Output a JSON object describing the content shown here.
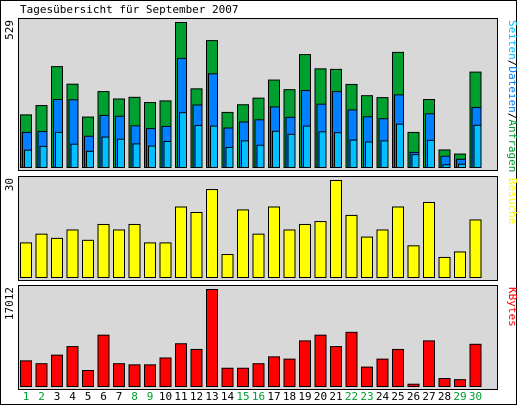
{
  "chart_data": {
    "type": "bar",
    "title": "Tagesübersicht für September 2007",
    "categories": [
      "1",
      "2",
      "3",
      "4",
      "5",
      "6",
      "7",
      "8",
      "9",
      "10",
      "11",
      "12",
      "13",
      "14",
      "15",
      "16",
      "17",
      "18",
      "19",
      "20",
      "21",
      "22",
      "23",
      "24",
      "25",
      "26",
      "27",
      "28",
      "29",
      "30"
    ],
    "weekend_days": [
      "1",
      "2",
      "8",
      "9",
      "15",
      "16",
      "22",
      "23",
      "29",
      "30"
    ],
    "colors": {
      "anfragen": "#00a030",
      "dateien": "#0080ff",
      "seiten": "#00c0ff",
      "besuche": "#ffff00",
      "kbytes": "#ff0000",
      "weekday_label": "#000000",
      "weekend_label": "#00a030",
      "panel_bg": "#d8d8d8"
    },
    "panels": [
      {
        "id": "hits",
        "max_label": "529",
        "ylim": [
          0,
          529
        ],
        "legend": [
          {
            "text": "Seiten",
            "color": "#00c0ff"
          },
          {
            "text": "/",
            "color": "#000000"
          },
          {
            "text": "Dateien",
            "color": "#0080ff"
          },
          {
            "text": "/",
            "color": "#000000"
          },
          {
            "text": "Anfragen",
            "color": "#00a030"
          }
        ],
        "series": [
          {
            "name": "Anfragen",
            "color": "#00a030",
            "values": [
              192,
              226,
              368,
              304,
              184,
              277,
              250,
              256,
              237,
              243,
              529,
              287,
              463,
              201,
              229,
              253,
              319,
              284,
              412,
              360,
              358,
              303,
              262,
              255,
              420,
              128,
              248,
              64,
              49,
              348
            ]
          },
          {
            "name": "Dateien",
            "color": "#0080ff",
            "values": [
              128,
              131,
              248,
              247,
              114,
              190,
              187,
              152,
              142,
              150,
              398,
              228,
              342,
              144,
              166,
              174,
              221,
              183,
              281,
              231,
              277,
              210,
              185,
              178,
              265,
              55,
              196,
              41,
              30,
              219
            ]
          },
          {
            "name": "Seiten",
            "color": "#00c0ff",
            "values": [
              63,
              77,
              128,
              85,
              59,
              111,
              103,
              86,
              78,
              95,
              200,
              153,
              151,
              73,
              97,
              81,
              132,
              121,
              151,
              130,
              127,
              100,
              93,
              97,
              158,
              47,
              99,
              10,
              12,
              154
            ]
          }
        ]
      },
      {
        "id": "visits",
        "max_label": "30",
        "ylim": [
          0,
          30
        ],
        "legend": [
          {
            "text": "Besuche",
            "color": "#ffff00"
          }
        ],
        "series": [
          {
            "name": "Besuche",
            "color": "#ffff00",
            "values": [
              10.7,
              13.4,
              12.1,
              14.7,
              11.5,
              16.4,
              14.7,
              16.4,
              10.7,
              10.7,
              21.8,
              20.1,
              27.2,
              7.1,
              20.9,
              13.4,
              21.8,
              14.7,
              16.4,
              17.3,
              30,
              19.2,
              12.5,
              14.7,
              21.8,
              9.8,
              23.2,
              6.2,
              7.9,
              17.8
            ]
          }
        ]
      },
      {
        "id": "kbytes",
        "max_label": "17012",
        "ylim": [
          0,
          17012
        ],
        "legend": [
          {
            "text": "KBytes",
            "color": "#ff0000"
          }
        ],
        "series": [
          {
            "name": "KBytes",
            "color": "#ff0000",
            "values": [
              4500,
              4000,
              5500,
              7000,
              2800,
              9000,
              4000,
              3800,
              3800,
              5000,
              7500,
              6500,
              17012,
              3200,
              3200,
              4000,
              5200,
              4800,
              8000,
              9000,
              7000,
              9500,
              3400,
              4800,
              6500,
              400,
              8000,
              1400,
              1200,
              7400
            ]
          }
        ]
      }
    ]
  }
}
